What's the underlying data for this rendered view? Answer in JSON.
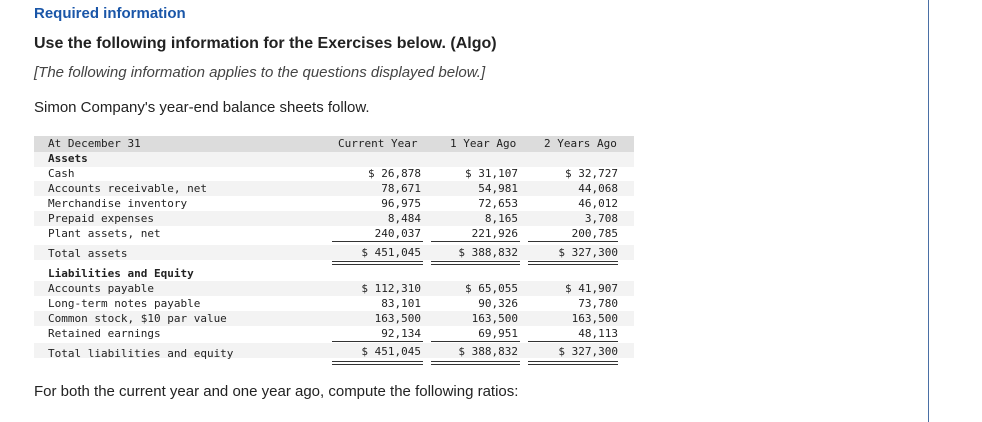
{
  "header": {
    "required": "Required information",
    "use": "Use the following information for the Exercises below. (Algo)",
    "note": "[The following information applies to the questions displayed below.]",
    "intro": "Simon Company's year-end balance sheets follow."
  },
  "table": {
    "header_label": "At December 31",
    "columns": [
      "Current Year",
      "1 Year Ago",
      "2 Years Ago"
    ],
    "assets_heading": "Assets",
    "assets": [
      {
        "label": "Cash",
        "values": [
          "$ 26,878",
          "$ 31,107",
          "$ 32,727"
        ]
      },
      {
        "label": "Accounts receivable, net",
        "values": [
          "78,671",
          "54,981",
          "44,068"
        ]
      },
      {
        "label": "Merchandise inventory",
        "values": [
          "96,975",
          "72,653",
          "46,012"
        ]
      },
      {
        "label": "Prepaid expenses",
        "values": [
          "8,484",
          "8,165",
          "3,708"
        ]
      },
      {
        "label": "Plant assets, net",
        "values": [
          "240,037",
          "221,926",
          "200,785"
        ]
      }
    ],
    "total_assets": {
      "label": "Total assets",
      "values": [
        "$ 451,045",
        "$ 388,832",
        "$ 327,300"
      ]
    },
    "liab_heading": "Liabilities and Equity",
    "liabilities": [
      {
        "label": "Accounts payable",
        "values": [
          "$ 112,310",
          "$ 65,055",
          "$ 41,907"
        ]
      },
      {
        "label": "Long-term notes payable",
        "values": [
          "83,101",
          "90,326",
          "73,780"
        ]
      },
      {
        "label": "Common stock, $10 par value",
        "values": [
          "163,500",
          "163,500",
          "163,500"
        ]
      },
      {
        "label": "Retained earnings",
        "values": [
          "92,134",
          "69,951",
          "48,113"
        ]
      }
    ],
    "total_liab": {
      "label": "Total liabilities and equity",
      "values": [
        "$ 451,045",
        "$ 388,832",
        "$ 327,300"
      ]
    }
  },
  "footer": "For both the current year and one year ago, compute the following ratios:"
}
